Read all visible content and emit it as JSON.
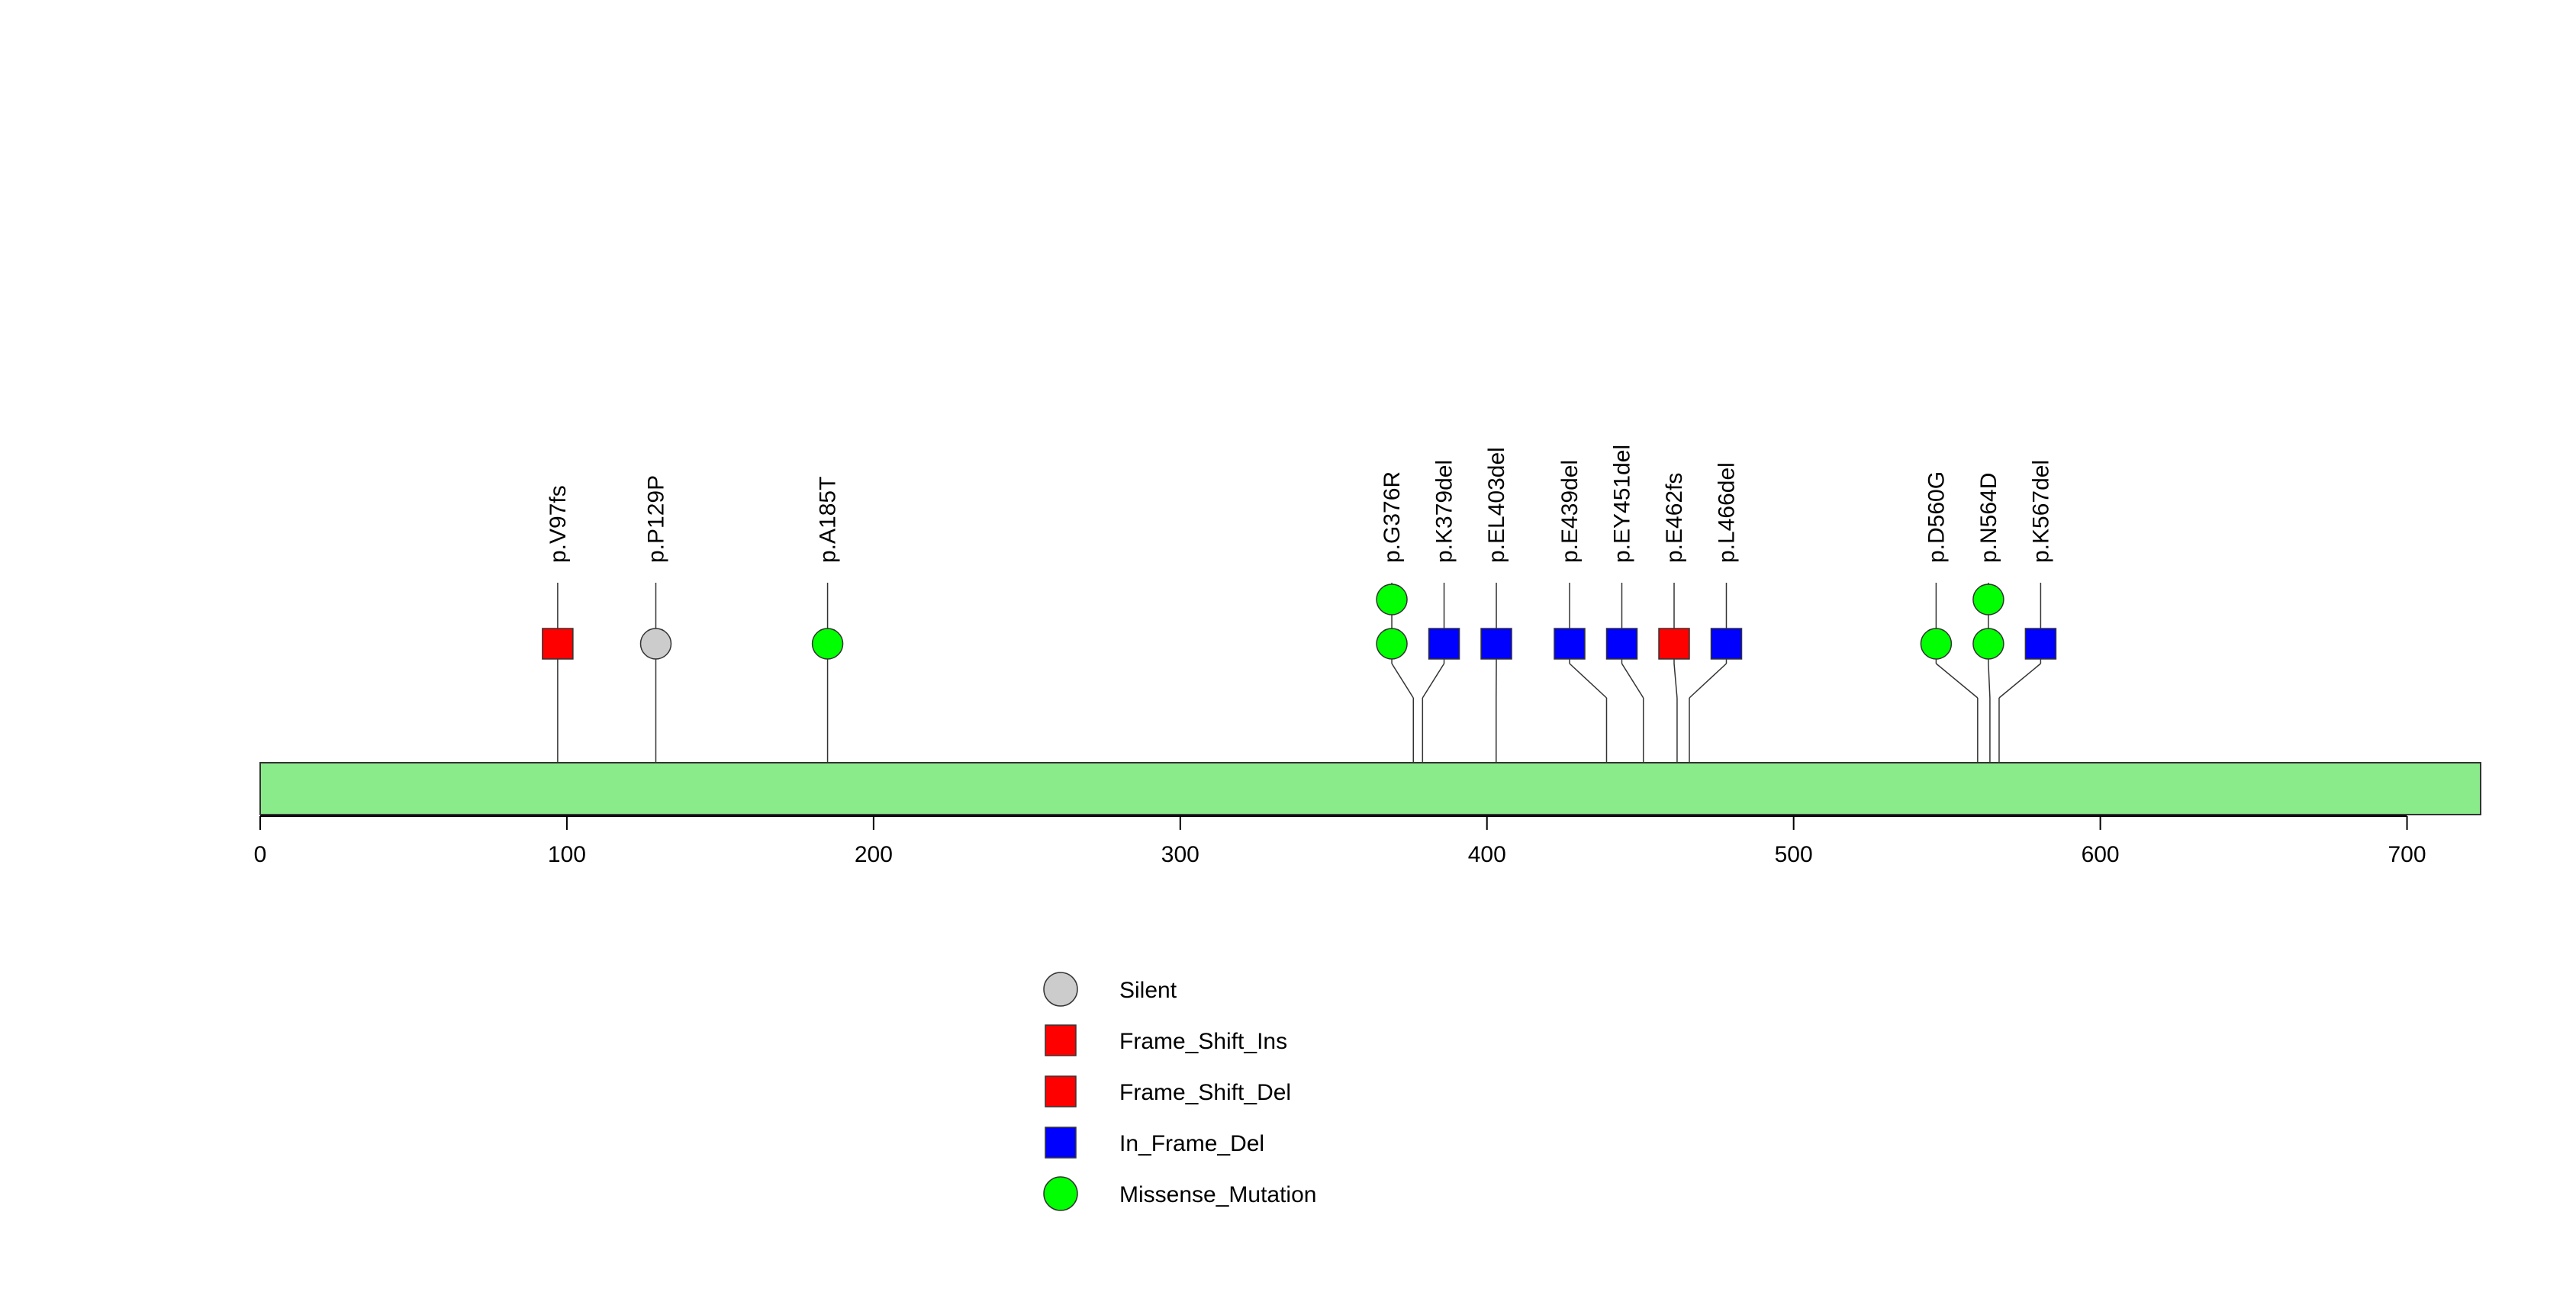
{
  "chart_data": {
    "type": "lollipop",
    "title": "",
    "xlabel": "",
    "ylabel": "",
    "xlim": [
      0,
      724
    ],
    "protein_length": 724,
    "x_ticks": [
      {
        "value": 0,
        "label": "0"
      },
      {
        "value": 100,
        "label": "100"
      },
      {
        "value": 200,
        "label": "200"
      },
      {
        "value": 300,
        "label": "300"
      },
      {
        "value": 400,
        "label": "400"
      },
      {
        "value": 500,
        "label": "500"
      },
      {
        "value": 600,
        "label": "600"
      },
      {
        "value": 700,
        "label": "700"
      }
    ],
    "colors": {
      "Silent": "#cccccc",
      "Frame_Shift_Ins": "#ff0000",
      "Frame_Shift_Del": "#ff0000",
      "In_Frame_Del": "#0000ff",
      "Missense_Mutation": "#00ff00",
      "protein_bar": "#8aeb8a",
      "stroke": "#333333"
    },
    "mutations": [
      {
        "label": "p.V97fs",
        "position": 97,
        "type": "Frame_Shift_Del",
        "shape": "square",
        "count": 1
      },
      {
        "label": "p.P129P",
        "position": 129,
        "type": "Silent",
        "shape": "circle",
        "count": 1
      },
      {
        "label": "p.A185T",
        "position": 185,
        "type": "Missense_Mutation",
        "shape": "circle",
        "count": 1
      },
      {
        "label": "p.G376R",
        "position": 376,
        "type": "Missense_Mutation",
        "shape": "circle",
        "count": 2
      },
      {
        "label": "p.K379del",
        "position": 379,
        "type": "In_Frame_Del",
        "shape": "square",
        "count": 1
      },
      {
        "label": "p.EL403del",
        "position": 403,
        "type": "In_Frame_Del",
        "shape": "square",
        "count": 1
      },
      {
        "label": "p.E439del",
        "position": 439,
        "type": "In_Frame_Del",
        "shape": "square",
        "count": 1
      },
      {
        "label": "p.EY451del",
        "position": 451,
        "type": "In_Frame_Del",
        "shape": "square",
        "count": 1
      },
      {
        "label": "p.E462fs",
        "position": 462,
        "type": "Frame_Shift_Del",
        "shape": "square",
        "count": 1
      },
      {
        "label": "p.L466del",
        "position": 466,
        "type": "In_Frame_Del",
        "shape": "square",
        "count": 1
      },
      {
        "label": "p.D560G",
        "position": 560,
        "type": "Missense_Mutation",
        "shape": "circle",
        "count": 1
      },
      {
        "label": "p.N564D",
        "position": 564,
        "type": "Missense_Mutation",
        "shape": "circle",
        "count": 2
      },
      {
        "label": "p.K567del",
        "position": 567,
        "type": "In_Frame_Del",
        "shape": "square",
        "count": 1
      }
    ],
    "legend": {
      "placement": "bottom-center",
      "entries": [
        {
          "label": "Silent",
          "shape": "circle",
          "color": "#cccccc"
        },
        {
          "label": "Frame_Shift_Ins",
          "shape": "square",
          "color": "#ff0000"
        },
        {
          "label": "Frame_Shift_Del",
          "shape": "square",
          "color": "#ff0000"
        },
        {
          "label": "In_Frame_Del",
          "shape": "square",
          "color": "#0000ff"
        },
        {
          "label": "Missense_Mutation",
          "shape": "circle",
          "color": "#00ff00"
        }
      ]
    }
  }
}
